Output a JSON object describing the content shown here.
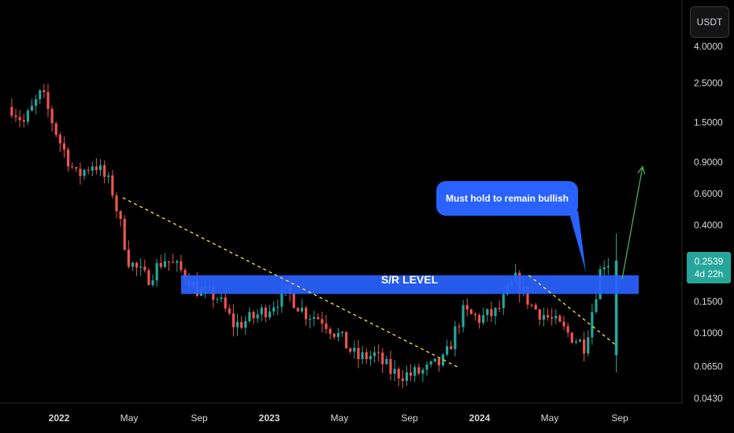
{
  "currency_button": {
    "label": "USDT"
  },
  "price_badge": {
    "price": "0.2539",
    "countdown": "4d 22h"
  },
  "annotations": {
    "sr_label": "S/R LEVEL",
    "callout_text": "Must hold to remain bullish"
  },
  "colors": {
    "background": "#000000",
    "up_candle": "#26a69a",
    "down_candle": "#ef5350",
    "zone": "#2962ff",
    "trendline": "#ffeb3b",
    "projection_arrow": "#4caf50"
  },
  "chart_data": {
    "type": "candlestick",
    "y_scale": "log",
    "y_ticks": [
      "4.0000",
      "2.5000",
      "1.5000",
      "0.9000",
      "0.6000",
      "0.4000",
      "0.1500",
      "0.1000",
      "0.0650",
      "0.0430"
    ],
    "x_ticks": [
      {
        "label": "2022",
        "bold": true,
        "date": "2022-01"
      },
      {
        "label": "May",
        "bold": false,
        "date": "2022-05"
      },
      {
        "label": "Sep",
        "bold": false,
        "date": "2022-09"
      },
      {
        "label": "2023",
        "bold": true,
        "date": "2023-01"
      },
      {
        "label": "May",
        "bold": false,
        "date": "2023-05"
      },
      {
        "label": "Sep",
        "bold": false,
        "date": "2023-09"
      },
      {
        "label": "2024",
        "bold": true,
        "date": "2024-01"
      },
      {
        "label": "May",
        "bold": false,
        "date": "2024-05"
      },
      {
        "label": "Sep",
        "bold": false,
        "date": "2024-09"
      }
    ],
    "sr_zone": [
      0.165,
      0.21
    ],
    "anchors": [
      [
        "2021-10",
        2.0
      ],
      [
        "2021-11",
        1.5
      ],
      [
        "2021-12",
        2.2
      ],
      [
        "2022-01",
        1.2
      ],
      [
        "2022-02",
        0.75
      ],
      [
        "2022-03",
        0.9
      ],
      [
        "2022-04",
        0.65
      ],
      [
        "2022-05",
        0.25
      ],
      [
        "2022-06",
        0.2
      ],
      [
        "2022-07",
        0.26
      ],
      [
        "2022-08",
        0.22
      ],
      [
        "2022-09",
        0.17
      ],
      [
        "2022-10",
        0.16
      ],
      [
        "2022-11",
        0.11
      ],
      [
        "2022-12",
        0.12
      ],
      [
        "2023-01",
        0.14
      ],
      [
        "2023-02",
        0.17
      ],
      [
        "2023-03",
        0.13
      ],
      [
        "2023-04",
        0.12
      ],
      [
        "2023-05",
        0.095
      ],
      [
        "2023-06",
        0.072
      ],
      [
        "2023-07",
        0.075
      ],
      [
        "2023-08",
        0.06
      ],
      [
        "2023-09",
        0.058
      ],
      [
        "2023-10",
        0.062
      ],
      [
        "2023-11",
        0.07
      ],
      [
        "2023-12",
        0.13
      ],
      [
        "2024-01",
        0.12
      ],
      [
        "2024-02",
        0.13
      ],
      [
        "2024-03",
        0.2
      ],
      [
        "2024-04",
        0.14
      ],
      [
        "2024-05",
        0.12
      ],
      [
        "2024-06",
        0.1
      ],
      [
        "2024-07",
        0.085
      ],
      [
        "2024-08",
        0.25
      ]
    ],
    "trendlines": [
      {
        "from": [
          "2022-04-20",
          0.57
        ],
        "to": [
          "2023-11-25",
          0.064
        ]
      },
      {
        "from": [
          "2024-03-25",
          0.21
        ],
        "to": [
          "2024-08-25",
          0.085
        ]
      }
    ],
    "projection": {
      "from": [
        "2024-09-05",
        0.2
      ],
      "to": [
        "2024-10-10",
        0.85
      ]
    },
    "last_price": 0.2539
  }
}
